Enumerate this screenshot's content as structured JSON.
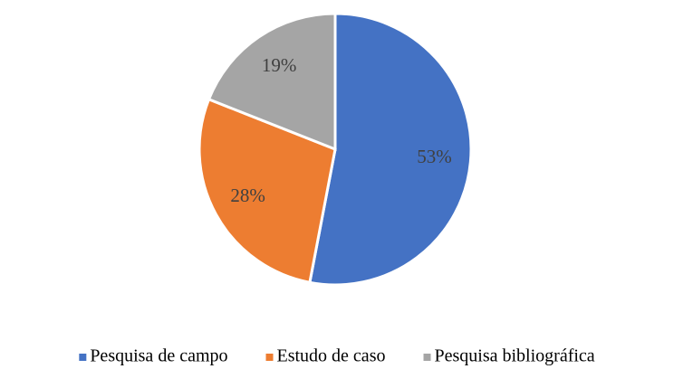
{
  "chart_data": {
    "type": "pie",
    "categories": [
      "Pesquisa de campo",
      "Estudo de caso",
      "Pesquisa bibliográfica"
    ],
    "values": [
      53,
      28,
      19
    ],
    "value_labels": [
      "53%",
      "28%",
      "19%"
    ],
    "colors": [
      "#4472c4",
      "#ed7d31",
      "#a5a5a5"
    ],
    "legend": "bottom"
  }
}
